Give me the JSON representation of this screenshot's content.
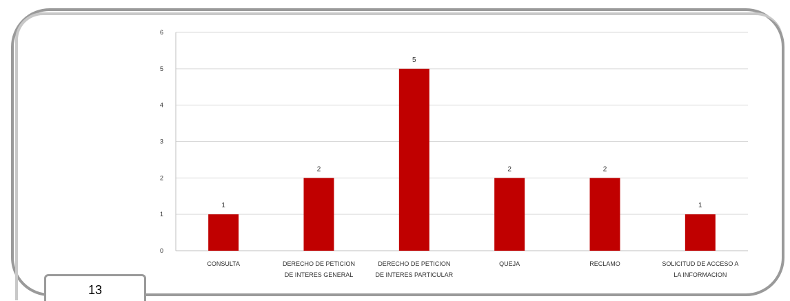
{
  "page": {
    "number": "13"
  },
  "colors": {
    "bar": "#c00000",
    "grid": "#d9d9d9",
    "axis": "#bfbfbf",
    "frame": "#9a9a9a"
  },
  "chart_data": {
    "type": "bar",
    "title": "",
    "xlabel": "",
    "ylabel": "",
    "categories": [
      [
        "CONSULTA"
      ],
      [
        "DERECHO DE PETICION",
        "DE INTERES GENERAL"
      ],
      [
        "DERECHO DE PETICION",
        "DE INTERES PARTICULAR"
      ],
      [
        "QUEJA"
      ],
      [
        "RECLAMO"
      ],
      [
        "SOLICITUD DE ACCESO A",
        "LA INFORMACION"
      ]
    ],
    "values": [
      1,
      2,
      5,
      2,
      2,
      1
    ],
    "ylim": [
      0,
      6
    ],
    "yticks": [
      0,
      1,
      2,
      3,
      4,
      5,
      6
    ],
    "grid": true,
    "legend": "none"
  }
}
